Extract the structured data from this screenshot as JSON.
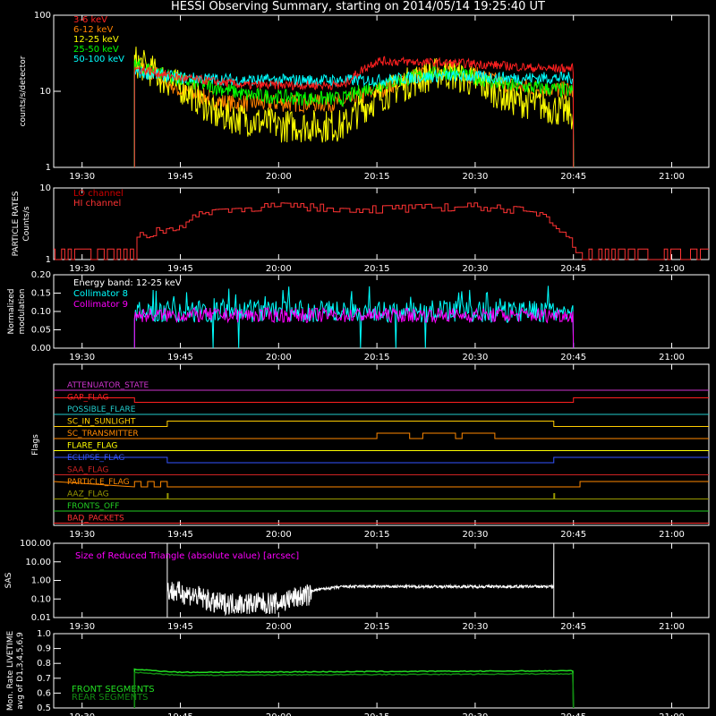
{
  "title": "HESSI Observing Summary, starting on 2014/05/14 19:25:40 UT",
  "colors": {
    "e3_6": "#ff2020",
    "e6_12": "#ff8000",
    "e12_25": "#ffff00",
    "e25_50": "#00ff00",
    "e50_100": "#00ffff",
    "lo": "#cc0000",
    "hi": "#ff3333",
    "coll8": "#00ffff",
    "coll9": "#ff00ff"
  },
  "time_ticks": [
    "19:30",
    "19:45",
    "20:00",
    "20:15",
    "20:30",
    "20:45",
    "21:00"
  ],
  "chart_data": [
    {
      "id": "count-rates",
      "type": "line",
      "ylabel": "counts/s/detector",
      "yscale": "log",
      "ylim": [
        1,
        100
      ],
      "yticks": [
        "1",
        "10",
        "100"
      ],
      "x_range": [
        "19:25:40",
        "21:05:40"
      ],
      "series": [
        {
          "name": "3-6 keV",
          "x": [
            "19:38",
            "19:45",
            "19:55",
            "20:05",
            "20:10",
            "20:15",
            "20:30",
            "20:40",
            "20:45"
          ],
          "y": [
            20,
            15,
            12,
            12,
            12,
            25,
            23,
            20,
            20
          ]
        },
        {
          "name": "6-12 keV",
          "x": [
            "19:38",
            "19:45",
            "19:52",
            "20:00",
            "20:10",
            "20:15",
            "20:25",
            "20:35",
            "20:45"
          ],
          "y": [
            22,
            10,
            7,
            7,
            7,
            10,
            20,
            12,
            10
          ]
        },
        {
          "name": "12-25 keV",
          "x": [
            "19:38",
            "19:42",
            "19:50",
            "20:00",
            "20:10",
            "20:15",
            "20:25",
            "20:35",
            "20:45"
          ],
          "y": [
            25,
            15,
            5,
            3.5,
            3.5,
            8,
            18,
            8,
            5
          ]
        },
        {
          "name": "25-50 keV",
          "x": [
            "19:38",
            "19:45",
            "19:55",
            "20:05",
            "20:10",
            "20:15",
            "20:25",
            "20:35",
            "20:45"
          ],
          "y": [
            22,
            14,
            9,
            8,
            8,
            12,
            18,
            12,
            10
          ]
        },
        {
          "name": "50-100 keV",
          "x": [
            "19:38",
            "19:45",
            "19:55",
            "20:05",
            "20:10",
            "20:15",
            "20:25",
            "20:35",
            "20:45"
          ],
          "y": [
            18,
            15,
            14,
            14,
            14,
            14,
            16,
            15,
            15
          ]
        }
      ]
    },
    {
      "id": "particle-rates",
      "type": "line",
      "ylabel": "PARTICLE RATES",
      "ylabel2": "Counts/s",
      "yscale": "log",
      "ylim": [
        1,
        10
      ],
      "yticks": [
        "1",
        "10"
      ],
      "series": [
        {
          "name": "LO channel"
        },
        {
          "name": "HI channel",
          "x": [
            "19:27",
            "19:38",
            "19:45",
            "19:50",
            "20:00",
            "20:15",
            "20:30",
            "20:40",
            "20:45",
            "21:05"
          ],
          "y": [
            1.4,
            2.0,
            3.0,
            5.0,
            5.5,
            5.0,
            5.5,
            4.5,
            1.4,
            1.4
          ]
        }
      ]
    },
    {
      "id": "modulation",
      "type": "line",
      "ylabel": "Normalized",
      "ylabel2": "modulation",
      "ylim": [
        0,
        0.2
      ],
      "yticks": [
        "0.00",
        "0.05",
        "0.10",
        "0.15",
        "0.20"
      ],
      "annotation": "Energy band: 12-25 keV",
      "series": [
        {
          "name": "Collimator 8",
          "x": [
            "19:38",
            "20:45"
          ],
          "y": [
            0.1,
            0.1
          ]
        },
        {
          "name": "Collimator 9",
          "x": [
            "19:38",
            "20:45"
          ],
          "y": [
            0.09,
            0.09
          ]
        }
      ]
    },
    {
      "id": "flags",
      "type": "line",
      "ylabel": "Flags",
      "series": [
        {
          "name": "ATTENUATOR_STATE",
          "color": "#cc33cc"
        },
        {
          "name": "SAA_FLAG_top",
          "label": "GAP_FLAG",
          "color": "#ff2020"
        },
        {
          "name": "POSSIBLE_FLARE",
          "color": "#22cccc"
        },
        {
          "name": "SC_IN_SUNLIGHT",
          "color": "#ffcc00"
        },
        {
          "name": "SC_TRANSMITTER",
          "color": "#ff8800"
        },
        {
          "name": "FLARE_FLAG",
          "color": "#ffff00"
        },
        {
          "name": "ECLIPSE_FLAG",
          "color": "#3355ff"
        },
        {
          "name": "SAA_FLAG",
          "color": "#cc2222"
        },
        {
          "name": "PARTICLE_FLAG",
          "color": "#ff8800"
        },
        {
          "name": "AAZ_FLAG",
          "color": "#999900"
        },
        {
          "name": "FRONTS_OFF",
          "color": "#22cc22"
        },
        {
          "name": "BAD_PACKETS",
          "color": "#ff3333"
        }
      ]
    },
    {
      "id": "sas",
      "type": "line",
      "ylabel": "SAS",
      "yscale": "log",
      "ylim": [
        0.01,
        100
      ],
      "yticks": [
        "0.01",
        "0.10",
        "1.00",
        "10.00",
        "100.00"
      ],
      "annotation": "Size of Reduced Triangle (absolute value) [arcsec]",
      "series": [
        {
          "x": [
            "19:43",
            "19:50",
            "20:00",
            "20:05",
            "20:10",
            "20:30",
            "20:42"
          ],
          "y": [
            0.5,
            0.1,
            0.1,
            0.3,
            0.5,
            0.5,
            0.5
          ]
        }
      ]
    },
    {
      "id": "livetime",
      "type": "line",
      "ylabel": "Mon. Rate LIVETIME",
      "ylabel2": "avg of D1,3,4,5,6,9",
      "ylim": [
        0.5,
        1.0
      ],
      "yticks": [
        "0.5",
        "0.6",
        "0.7",
        "0.8",
        "0.9",
        "1.0"
      ],
      "series": [
        {
          "name": "FRONT SEGMENTS",
          "x": [
            "19:38",
            "19:45",
            "20:45"
          ],
          "y": [
            0.76,
            0.74,
            0.75
          ]
        },
        {
          "name": "REAR SEGMENTS",
          "x": [
            "19:38",
            "19:45",
            "20:45"
          ],
          "y": [
            0.74,
            0.72,
            0.73
          ]
        }
      ]
    }
  ]
}
